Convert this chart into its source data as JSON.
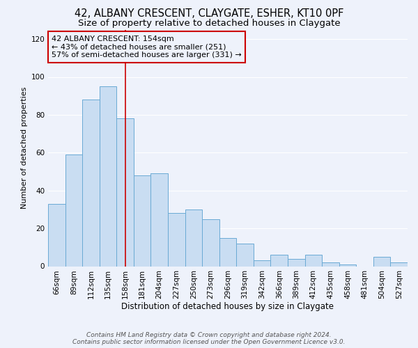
{
  "title": "42, ALBANY CRESCENT, CLAYGATE, ESHER, KT10 0PF",
  "subtitle": "Size of property relative to detached houses in Claygate",
  "xlabel": "Distribution of detached houses by size in Claygate",
  "ylabel": "Number of detached properties",
  "categories": [
    "66sqm",
    "89sqm",
    "112sqm",
    "135sqm",
    "158sqm",
    "181sqm",
    "204sqm",
    "227sqm",
    "250sqm",
    "273sqm",
    "296sqm",
    "319sqm",
    "342sqm",
    "366sqm",
    "389sqm",
    "412sqm",
    "435sqm",
    "458sqm",
    "481sqm",
    "504sqm",
    "527sqm"
  ],
  "values": [
    33,
    59,
    88,
    95,
    78,
    48,
    49,
    28,
    30,
    25,
    15,
    12,
    3,
    6,
    4,
    6,
    2,
    1,
    0,
    5,
    2
  ],
  "bar_color": "#c9ddf2",
  "bar_edge_color": "#6aaad4",
  "vline_x": 4,
  "vline_color": "#cc0000",
  "annotation_text": "42 ALBANY CRESCENT: 154sqm\n← 43% of detached houses are smaller (251)\n57% of semi-detached houses are larger (331) →",
  "annotation_box_edge_color": "#cc0000",
  "ylim": [
    0,
    125
  ],
  "yticks": [
    0,
    20,
    40,
    60,
    80,
    100,
    120
  ],
  "background_color": "#eef2fb",
  "grid_color": "#ffffff",
  "footer_line1": "Contains HM Land Registry data © Crown copyright and database right 2024.",
  "footer_line2": "Contains public sector information licensed under the Open Government Licence v3.0.",
  "title_fontsize": 10.5,
  "subtitle_fontsize": 9.5,
  "xlabel_fontsize": 8.5,
  "ylabel_fontsize": 8,
  "tick_fontsize": 7.5,
  "annotation_fontsize": 8,
  "footer_fontsize": 6.5
}
